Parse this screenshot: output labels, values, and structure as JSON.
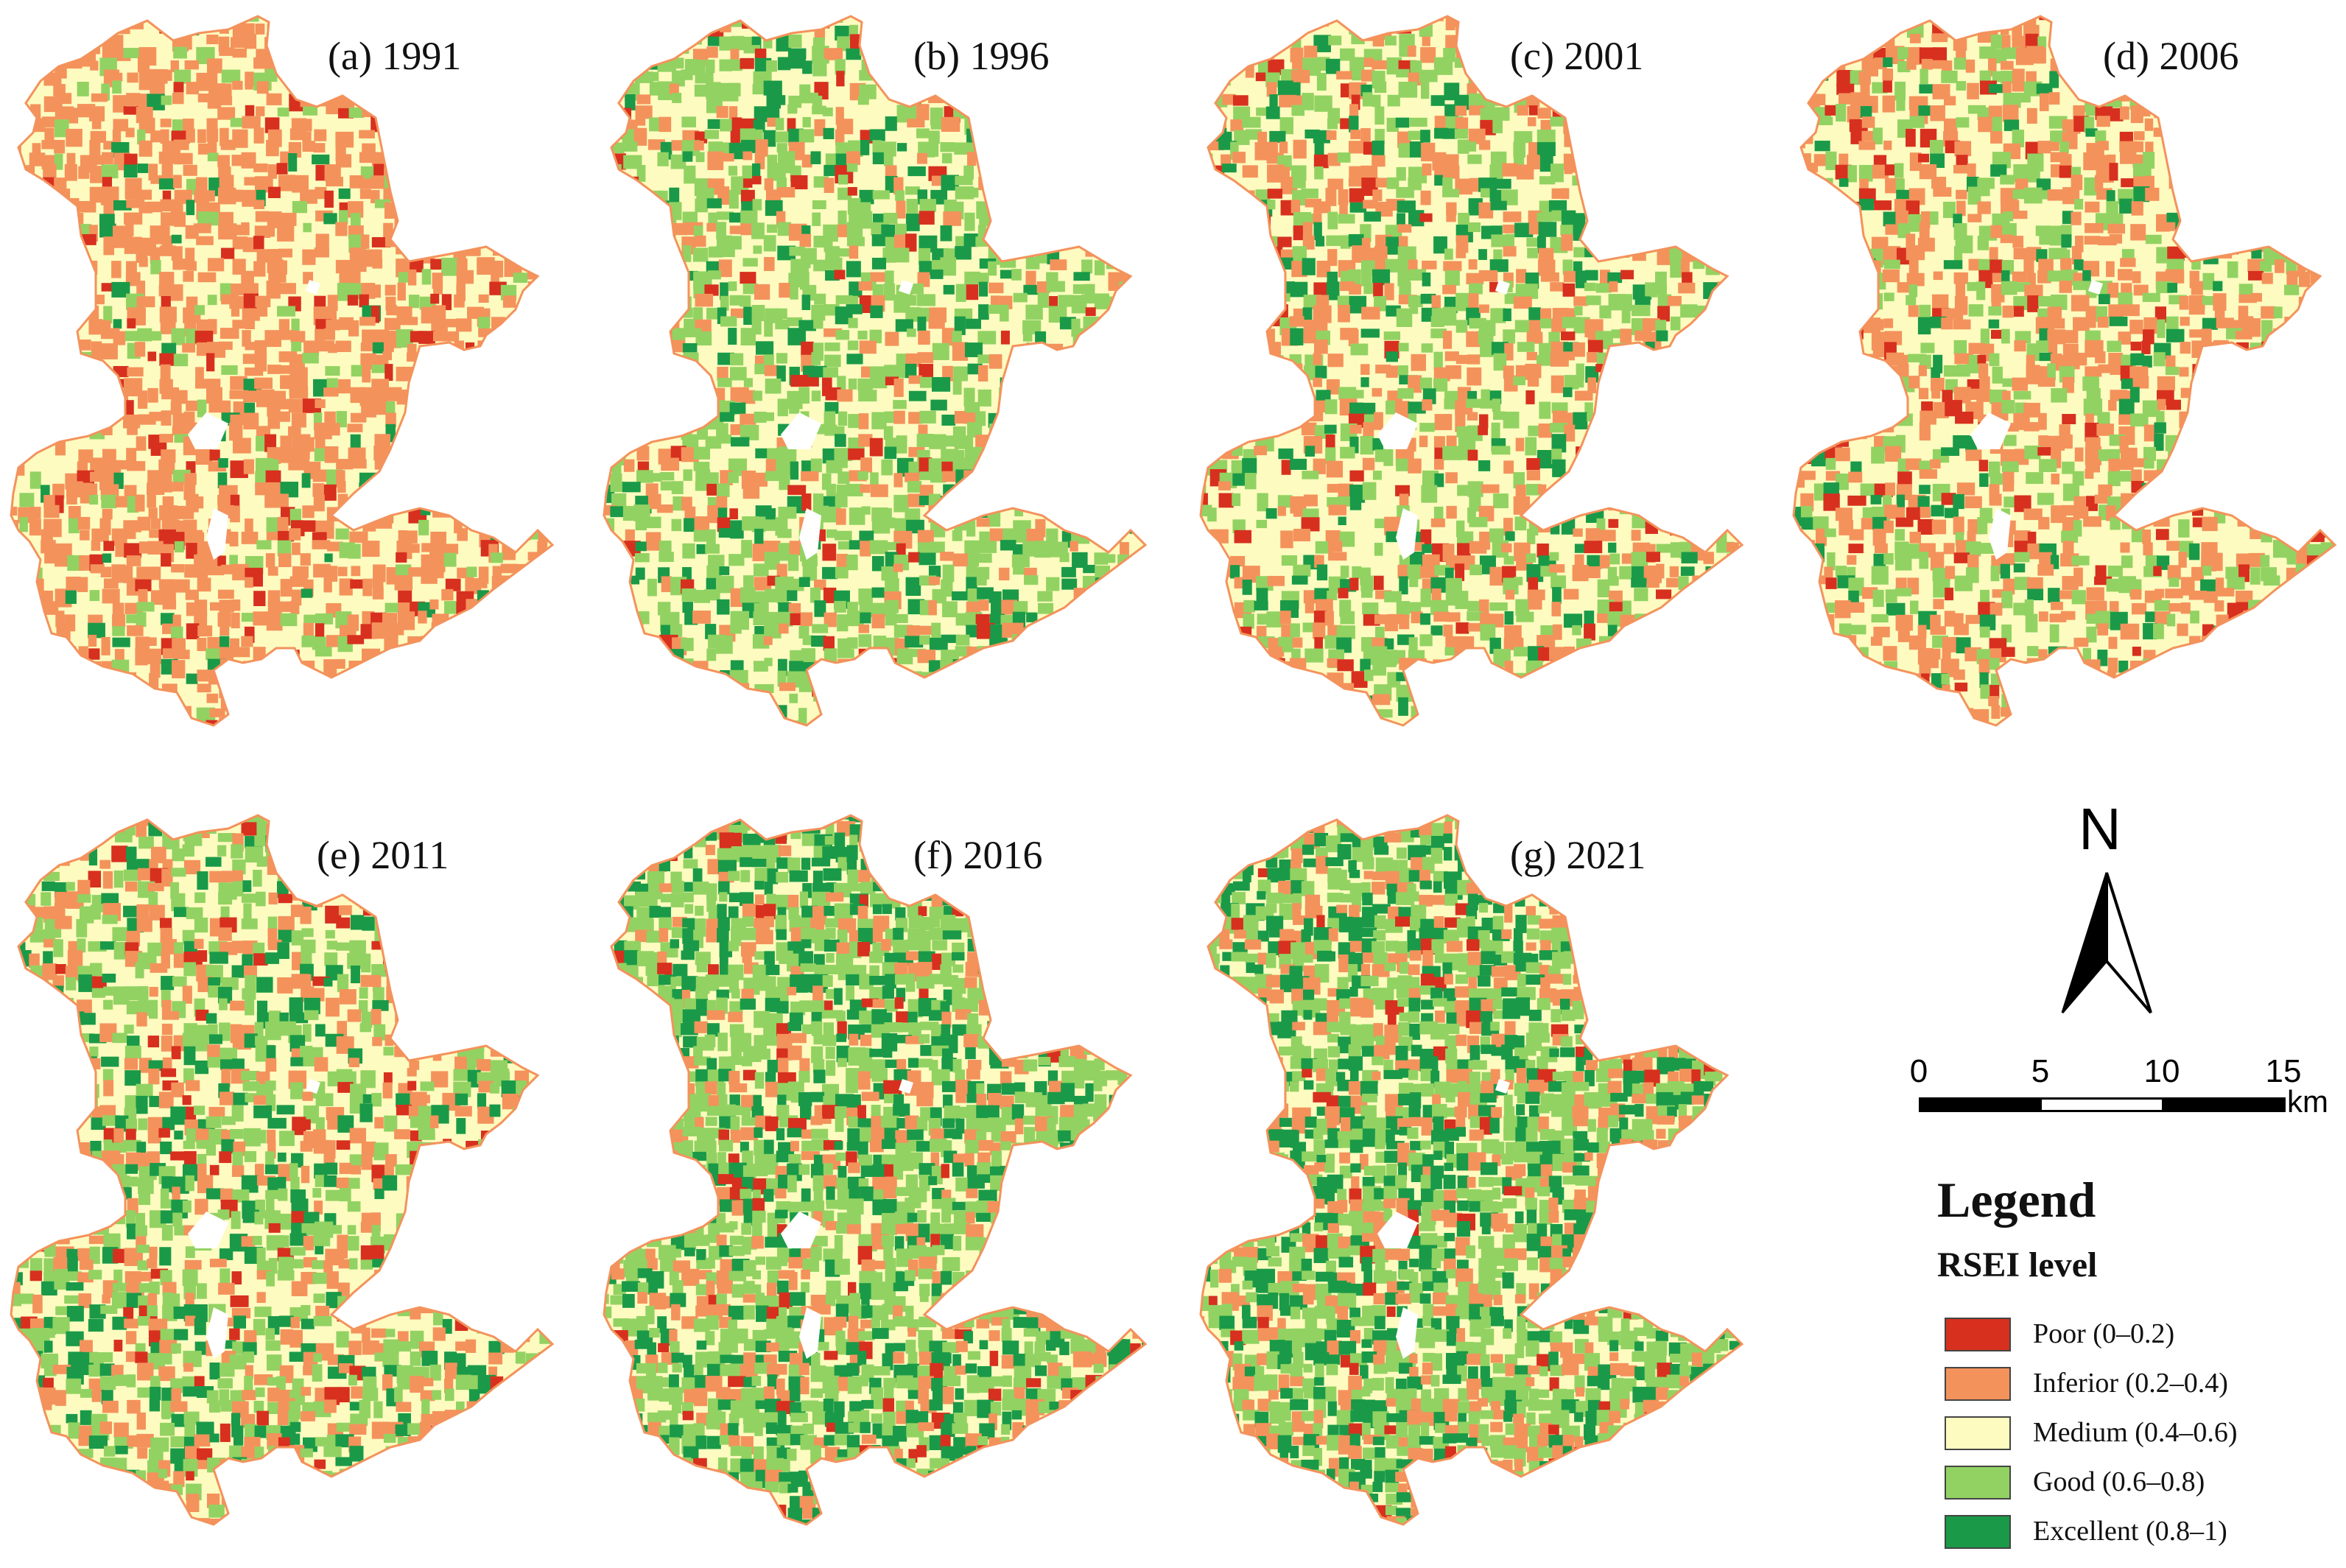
{
  "panels": [
    {
      "title": "(a) 1991",
      "mix": [
        0.05,
        0.45,
        0.4,
        0.07,
        0.03
      ]
    },
    {
      "title": "(b) 1996",
      "mix": [
        0.04,
        0.12,
        0.38,
        0.33,
        0.13
      ]
    },
    {
      "title": "(c) 2001",
      "mix": [
        0.05,
        0.22,
        0.4,
        0.23,
        0.1
      ]
    },
    {
      "title": "(d) 2006",
      "mix": [
        0.06,
        0.28,
        0.4,
        0.2,
        0.06
      ]
    },
    {
      "title": "(e) 2011",
      "mix": [
        0.05,
        0.2,
        0.37,
        0.26,
        0.12
      ]
    },
    {
      "title": "(f) 2016",
      "mix": [
        0.04,
        0.16,
        0.16,
        0.4,
        0.24
      ]
    },
    {
      "title": "(g) 2021",
      "mix": [
        0.04,
        0.22,
        0.14,
        0.36,
        0.24
      ]
    }
  ],
  "north_arrow": {
    "label": "N"
  },
  "scale_bar": {
    "ticks": [
      "0",
      "5",
      "10",
      "15"
    ],
    "unit": "km"
  },
  "legend": {
    "title": "Legend",
    "subtitle": "RSEI level",
    "items": [
      {
        "label": "Poor (0–0.2)",
        "color": "#d7301f"
      },
      {
        "label": "Inferior (0.2–0.4)",
        "color": "#f4925c"
      },
      {
        "label": "Medium (0.4–0.6)",
        "color": "#fdfbc0"
      },
      {
        "label": "Good (0.6–0.8)",
        "color": "#92d262"
      },
      {
        "label": "Excellent (0.8–1)",
        "color": "#1a9a48"
      }
    ]
  }
}
